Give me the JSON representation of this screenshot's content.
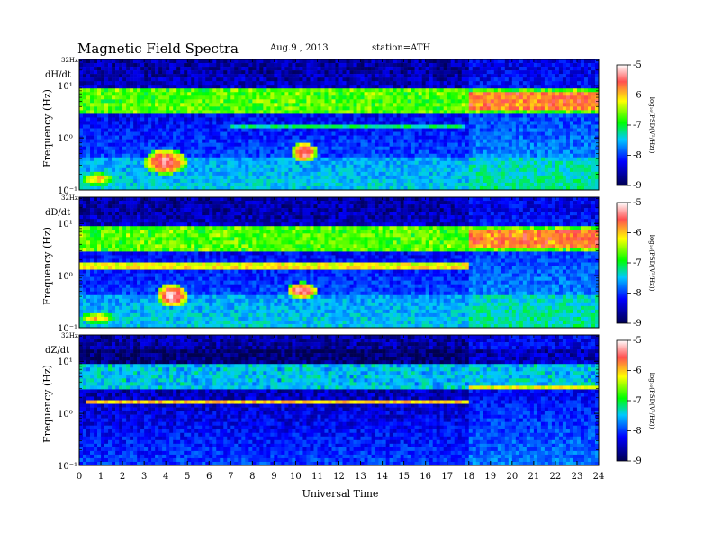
{
  "header": {
    "title": "Magnetic  Field  Spectra",
    "date": "Aug.9   , 2013",
    "station": "station=ATH"
  },
  "chart_data": {
    "type": "heatmap",
    "xlabel": "Universal Time",
    "x_ticks": [
      "0",
      "1",
      "2",
      "3",
      "4",
      "5",
      "6",
      "7",
      "8",
      "9",
      "10",
      "11",
      "12",
      "13",
      "14",
      "15",
      "16",
      "17",
      "18",
      "19",
      "20",
      "21",
      "22",
      "23",
      "24"
    ],
    "xlim": [
      0,
      24
    ],
    "y_scale": "log",
    "ylim": [
      0.1,
      32
    ],
    "ylabel": "Frequency  (Hz)",
    "y_tick_top": "32Hz",
    "y_tick_labels": [
      "10¹",
      "10⁰",
      "10⁻¹"
    ],
    "colorbar": {
      "label": "log₁₀(PSD(V²/Hz))",
      "ticks": [
        "-5",
        "-6",
        "-7",
        "-8",
        "-9"
      ],
      "range": [
        -9,
        -5
      ],
      "colors": [
        "#ffffff",
        "#ff4040",
        "#ffff00",
        "#00ff00",
        "#00c8ff",
        "#0000ff",
        "#000050"
      ]
    },
    "panels": [
      {
        "component": "dH/dt",
        "features": [
          {
            "desc": "band",
            "t": [
              0,
              24
            ],
            "f": [
              3,
              9
            ],
            "level": -6.8
          },
          {
            "desc": "band",
            "t": [
              18,
              24
            ],
            "f": [
              3.5,
              7
            ],
            "level": -5.8
          },
          {
            "desc": "line",
            "t": [
              7,
              17.8
            ],
            "f": 1.6,
            "level": -7.2
          },
          {
            "desc": "burst",
            "t": [
              3,
              5
            ],
            "f": [
              0.2,
              0.6
            ],
            "level": -5.3
          },
          {
            "desc": "burst",
            "t": [
              9.8,
              11
            ],
            "f": [
              0.35,
              0.8
            ],
            "level": -5.3
          },
          {
            "desc": "burst",
            "t": [
              0,
              1.7
            ],
            "f": [
              0.12,
              0.22
            ],
            "level": -6
          }
        ]
      },
      {
        "component": "dD/dt",
        "features": [
          {
            "desc": "band",
            "t": [
              0,
              24
            ],
            "f": [
              3,
              9
            ],
            "level": -6.8
          },
          {
            "desc": "band",
            "t": [
              18,
              24
            ],
            "f": [
              3.5,
              7
            ],
            "level": -5.8
          },
          {
            "desc": "line",
            "t": [
              0,
              18
            ],
            "f": 1.5,
            "level": -6
          },
          {
            "desc": "burst",
            "t": [
              3.6,
              5
            ],
            "f": [
              0.25,
              0.7
            ],
            "level": -5.2
          },
          {
            "desc": "burst",
            "t": [
              9.6,
              11
            ],
            "f": [
              0.35,
              0.75
            ],
            "level": -5.3
          },
          {
            "desc": "burst",
            "t": [
              0,
              1.7
            ],
            "f": [
              0.12,
              0.2
            ],
            "level": -6
          }
        ]
      },
      {
        "component": "dZ/dt",
        "features": [
          {
            "desc": "band",
            "t": [
              0,
              24
            ],
            "f": [
              3,
              9
            ],
            "level": -7.6
          },
          {
            "desc": "line",
            "t": [
              0.3,
              18
            ],
            "f": 1.6,
            "level": -6
          },
          {
            "desc": "line",
            "t": [
              18,
              24
            ],
            "f": 3.2,
            "level": -6.3
          }
        ]
      }
    ]
  }
}
